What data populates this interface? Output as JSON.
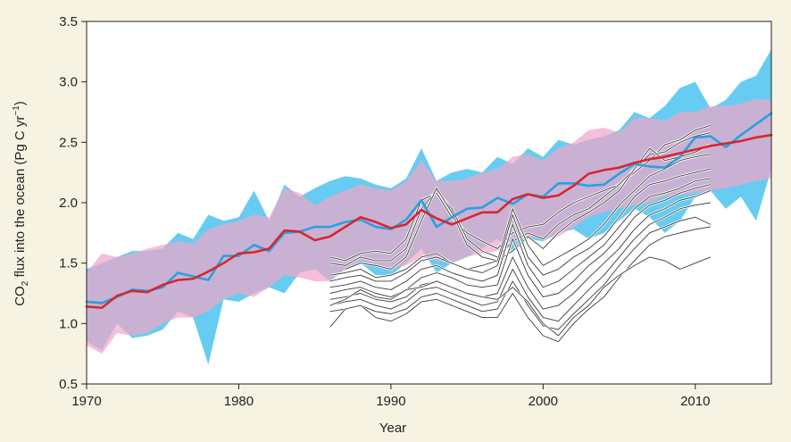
{
  "chart_data": {
    "type": "line",
    "title": "",
    "xlabel": "Year",
    "ylabel": {
      "prefix": "CO",
      "sub": "2",
      "middle": " flux into the ocean (Pg C yr",
      "sup": "−1",
      "suffix": ")"
    },
    "xlim": [
      1970,
      2015
    ],
    "ylim": [
      0.5,
      3.5
    ],
    "xticks": [
      1970,
      1980,
      1990,
      2000,
      2010
    ],
    "yticks": [
      "0.5",
      "1.0",
      "1.5",
      "2.0",
      "2.5",
      "3.0",
      "3.5"
    ],
    "grid": false,
    "legend": "none",
    "colors": {
      "blue_line": "#2b9fe0",
      "blue_band": "#4cc3ef",
      "red_line": "#d7262e",
      "pink_band": "#f0a6c8",
      "overlap": "#c49ad6",
      "gray_lines": "#3a3a3a",
      "background": "#f7f3e3"
    },
    "series": [
      {
        "color": "#2b9fe0",
        "band_color": "#4cc3ef",
        "x": [
          1970,
          1971,
          1972,
          1973,
          1974,
          1975,
          1976,
          1977,
          1978,
          1979,
          1980,
          1981,
          1982,
          1983,
          1984,
          1985,
          1986,
          1987,
          1988,
          1989,
          1990,
          1991,
          1992,
          1993,
          1994,
          1995,
          1996,
          1997,
          1998,
          1999,
          2000,
          2001,
          2002,
          2003,
          2004,
          2005,
          2006,
          2007,
          2008,
          2009,
          2010,
          2011,
          2012,
          2013,
          2014,
          2015
        ],
        "values": [
          1.18,
          1.17,
          1.22,
          1.28,
          1.27,
          1.3,
          1.42,
          1.39,
          1.36,
          1.56,
          1.56,
          1.65,
          1.6,
          1.75,
          1.76,
          1.8,
          1.8,
          1.84,
          1.86,
          1.8,
          1.78,
          1.86,
          2.02,
          1.8,
          1.88,
          1.95,
          1.96,
          2.04,
          1.99,
          2.07,
          2.05,
          2.16,
          2.16,
          2.14,
          2.15,
          2.24,
          2.32,
          2.3,
          2.29,
          2.38,
          2.54,
          2.55,
          2.46,
          2.56,
          2.65,
          2.74
        ],
        "band_upper": [
          1.45,
          1.5,
          1.55,
          1.6,
          1.6,
          1.62,
          1.75,
          1.7,
          1.9,
          1.85,
          1.88,
          2.1,
          1.85,
          2.15,
          2.05,
          2.12,
          2.18,
          2.22,
          2.2,
          2.15,
          2.12,
          2.2,
          2.45,
          2.18,
          2.25,
          2.28,
          2.25,
          2.38,
          2.32,
          2.45,
          2.38,
          2.52,
          2.48,
          2.52,
          2.55,
          2.6,
          2.75,
          2.7,
          2.8,
          2.95,
          3.0,
          2.78,
          2.85,
          3.0,
          3.05,
          3.27
        ],
        "band_lower": [
          0.85,
          0.78,
          1.0,
          0.88,
          0.9,
          0.95,
          1.1,
          1.05,
          0.66,
          1.2,
          1.18,
          1.25,
          1.3,
          1.25,
          1.42,
          1.45,
          1.35,
          1.45,
          1.5,
          1.4,
          1.4,
          1.5,
          1.62,
          1.42,
          1.5,
          1.55,
          1.62,
          1.7,
          1.6,
          1.7,
          1.68,
          1.75,
          1.78,
          1.7,
          1.75,
          1.85,
          1.95,
          1.88,
          1.75,
          1.85,
          2.05,
          2.1,
          1.95,
          2.05,
          1.85,
          2.28
        ]
      },
      {
        "color": "#d7262e",
        "band_color": "#f0a6c8",
        "x": [
          1970,
          1971,
          1972,
          1973,
          1974,
          1975,
          1976,
          1977,
          1978,
          1979,
          1980,
          1981,
          1982,
          1983,
          1984,
          1985,
          1986,
          1987,
          1988,
          1989,
          1990,
          1991,
          1992,
          1993,
          1994,
          1995,
          1996,
          1997,
          1998,
          1999,
          2000,
          2001,
          2002,
          2003,
          2004,
          2005,
          2006,
          2007,
          2008,
          2009,
          2010,
          2011,
          2012,
          2013,
          2014,
          2015
        ],
        "values": [
          1.14,
          1.13,
          1.23,
          1.27,
          1.26,
          1.32,
          1.36,
          1.37,
          1.43,
          1.5,
          1.58,
          1.59,
          1.62,
          1.77,
          1.76,
          1.69,
          1.72,
          1.8,
          1.88,
          1.84,
          1.79,
          1.82,
          1.94,
          1.87,
          1.82,
          1.87,
          1.92,
          1.92,
          2.03,
          2.07,
          2.04,
          2.06,
          2.14,
          2.24,
          2.27,
          2.29,
          2.33,
          2.36,
          2.38,
          2.41,
          2.44,
          2.47,
          2.49,
          2.51,
          2.54,
          2.56
        ],
        "band_upper": [
          1.42,
          1.58,
          1.55,
          1.58,
          1.62,
          1.65,
          1.68,
          1.66,
          1.78,
          1.82,
          1.85,
          1.9,
          1.88,
          2.12,
          2.08,
          1.98,
          2.05,
          2.1,
          2.15,
          2.12,
          2.1,
          2.18,
          2.35,
          2.18,
          2.18,
          2.2,
          2.25,
          2.28,
          2.38,
          2.4,
          2.35,
          2.45,
          2.5,
          2.6,
          2.62,
          2.58,
          2.7,
          2.7,
          2.68,
          2.75,
          2.75,
          2.8,
          2.8,
          2.82,
          2.86,
          2.85
        ],
        "band_lower": [
          0.82,
          0.75,
          0.92,
          0.9,
          0.92,
          1.0,
          1.05,
          1.05,
          1.1,
          1.2,
          1.25,
          1.22,
          1.3,
          1.4,
          1.38,
          1.35,
          1.35,
          1.45,
          1.52,
          1.48,
          1.45,
          1.48,
          1.55,
          1.52,
          1.5,
          1.55,
          1.58,
          1.6,
          1.68,
          1.72,
          1.7,
          1.72,
          1.8,
          1.88,
          1.92,
          1.95,
          1.98,
          2.0,
          2.05,
          2.06,
          2.08,
          2.1,
          2.12,
          2.15,
          2.18,
          2.2
        ]
      }
    ],
    "gray_lines": [
      {
        "x": [
          1986,
          1987,
          1988,
          1989,
          1990,
          1991,
          1992,
          1993,
          1994,
          1995,
          1996,
          1997,
          1998,
          1999,
          2000,
          2001,
          2002,
          2003,
          2004,
          2005,
          2006,
          2007,
          2008,
          2009,
          2010,
          2011
        ],
        "values": [
          1.55,
          1.52,
          1.58,
          1.6,
          1.58,
          1.7,
          2.02,
          2.08,
          1.88,
          1.75,
          1.68,
          1.62,
          1.75,
          1.8,
          1.82,
          1.92,
          2.0,
          2.05,
          2.1,
          2.15,
          2.25,
          2.35,
          2.48,
          2.52,
          2.6,
          2.64
        ]
      },
      {
        "x": [
          1986,
          1987,
          1988,
          1989,
          1990,
          1991,
          1992,
          1993,
          1994,
          1995,
          1996,
          1997,
          1998,
          1999,
          2000,
          2001,
          2002,
          2003,
          2004,
          2005,
          2006,
          2007,
          2008,
          2009,
          2010,
          2011
        ],
        "values": [
          1.5,
          1.48,
          1.55,
          1.52,
          1.52,
          1.62,
          1.95,
          2.1,
          1.95,
          1.7,
          1.6,
          1.55,
          1.68,
          1.75,
          1.7,
          1.82,
          1.9,
          1.95,
          2.05,
          2.15,
          2.28,
          2.4,
          2.42,
          2.5,
          2.55,
          2.58
        ]
      },
      {
        "x": [
          1987,
          1988,
          1989,
          1990,
          1991,
          1992,
          1993,
          1994,
          1995,
          1996,
          1997,
          1998,
          1999,
          2000,
          2001,
          2002,
          2003,
          2004,
          2005,
          2006,
          2007,
          2008,
          2009,
          2010,
          2011
        ],
        "values": [
          1.45,
          1.5,
          1.48,
          1.45,
          1.55,
          1.85,
          2.12,
          1.92,
          1.65,
          1.55,
          1.52,
          1.6,
          1.72,
          1.62,
          1.75,
          1.85,
          1.92,
          2.0,
          2.1,
          2.28,
          2.45,
          2.35,
          2.38,
          2.42,
          2.48
        ]
      },
      {
        "x": [
          1986,
          1987,
          1988,
          1989,
          1990,
          1991,
          1992,
          1993,
          1994,
          1995,
          1996,
          1997,
          1998,
          1999,
          2000,
          2001,
          2002,
          2003,
          2004,
          2005,
          2006,
          2007,
          2008,
          2009,
          2010,
          2011
        ],
        "values": [
          1.4,
          1.42,
          1.45,
          1.38,
          1.4,
          1.45,
          1.55,
          1.58,
          1.5,
          1.45,
          1.48,
          1.52,
          1.95,
          1.65,
          1.48,
          1.55,
          1.62,
          1.7,
          1.82,
          1.98,
          2.1,
          2.22,
          2.28,
          2.35,
          2.38,
          2.4
        ]
      },
      {
        "x": [
          1986,
          1987,
          1988,
          1989,
          1990,
          1991,
          1992,
          1993,
          1994,
          1995,
          1996,
          1997,
          1998,
          1999,
          2000,
          2001,
          2002,
          2003,
          2004,
          2005,
          2006,
          2007,
          2008,
          2009,
          2010,
          2011
        ],
        "values": [
          1.35,
          1.38,
          1.4,
          1.35,
          1.35,
          1.42,
          1.52,
          1.55,
          1.5,
          1.45,
          1.42,
          1.48,
          1.9,
          1.55,
          1.4,
          1.45,
          1.55,
          1.62,
          1.72,
          1.88,
          2.05,
          2.15,
          2.18,
          2.22,
          2.25,
          2.28
        ]
      },
      {
        "x": [
          1986,
          1987,
          1988,
          1989,
          1990,
          1991,
          1992,
          1993,
          1994,
          1995,
          1996,
          1997,
          1998,
          1999,
          2000,
          2001,
          2002,
          2003,
          2004,
          2005,
          2006,
          2007,
          2008,
          2009,
          2010,
          2011
        ],
        "values": [
          1.3,
          1.32,
          1.35,
          1.3,
          1.28,
          1.35,
          1.45,
          1.48,
          1.42,
          1.38,
          1.35,
          1.4,
          1.82,
          1.48,
          1.3,
          1.35,
          1.45,
          1.55,
          1.65,
          1.8,
          1.95,
          2.05,
          2.08,
          2.12,
          2.18,
          2.2
        ]
      },
      {
        "x": [
          1986,
          1987,
          1988,
          1989,
          1990,
          1991,
          1992,
          1993,
          1994,
          1995,
          1996,
          1997,
          1998,
          1999,
          2000,
          2001,
          2002,
          2003,
          2004,
          2005,
          2006,
          2007,
          2008,
          2009,
          2010,
          2011
        ],
        "values": [
          1.25,
          1.28,
          1.3,
          1.25,
          1.22,
          1.28,
          1.38,
          1.42,
          1.38,
          1.32,
          1.3,
          1.32,
          1.7,
          1.4,
          1.22,
          1.25,
          1.35,
          1.48,
          1.58,
          1.72,
          1.88,
          1.98,
          2.02,
          2.08,
          2.12,
          2.15
        ]
      },
      {
        "x": [
          1986,
          1987,
          1988,
          1989,
          1990,
          1991,
          1992,
          1993,
          1994,
          1995,
          1996,
          1997,
          1998,
          1999,
          2000,
          2001,
          2002,
          2003,
          2004,
          2005,
          2006,
          2007,
          2008,
          2009,
          2010,
          2011
        ],
        "values": [
          1.2,
          1.22,
          1.25,
          1.2,
          1.18,
          1.22,
          1.32,
          1.35,
          1.3,
          1.25,
          1.22,
          1.25,
          1.55,
          1.3,
          1.12,
          1.15,
          1.25,
          1.38,
          1.5,
          1.62,
          1.78,
          1.9,
          1.95,
          2.02,
          2.05,
          2.1
        ]
      },
      {
        "x": [
          1986,
          1987,
          1988,
          1989,
          1990,
          1991,
          1992,
          1993,
          1994,
          1995,
          1996,
          1997,
          1998,
          1999,
          2000,
          2001,
          2002,
          2003,
          2004,
          2005,
          2006,
          2007,
          2008,
          2009,
          2010,
          2011
        ],
        "values": [
          1.15,
          1.18,
          1.2,
          1.15,
          1.12,
          1.18,
          1.28,
          1.3,
          1.25,
          1.2,
          1.15,
          1.18,
          1.45,
          1.22,
          1.05,
          1.02,
          1.15,
          1.28,
          1.4,
          1.55,
          1.7,
          1.82,
          1.88,
          1.95,
          1.98,
          2.0
        ]
      },
      {
        "x": [
          1986,
          1987,
          1988,
          1989,
          1990,
          1991,
          1992,
          1993,
          1994,
          1995,
          1996,
          1997,
          1998,
          1999,
          2000,
          2001,
          2002,
          2003,
          2004,
          2005,
          2006,
          2007,
          2008,
          2009,
          2010,
          2011
        ],
        "values": [
          1.1,
          1.12,
          1.15,
          1.1,
          1.08,
          1.12,
          1.22,
          1.25,
          1.2,
          1.15,
          1.1,
          1.12,
          1.35,
          1.15,
          0.98,
          0.95,
          1.08,
          1.2,
          1.32,
          1.48,
          1.62,
          1.75,
          1.8,
          1.85,
          1.88,
          1.82
        ]
      },
      {
        "x": [
          1986,
          1987,
          1988,
          1989,
          1990,
          1991,
          1992,
          1993,
          1994,
          1995,
          1996,
          1997,
          1998,
          1999,
          2000,
          2001,
          2002,
          2003,
          2004,
          2005,
          2006,
          2007,
          2008,
          2009,
          2010,
          2011
        ],
        "values": [
          0.97,
          1.12,
          1.15,
          1.05,
          1.02,
          1.08,
          1.18,
          1.2,
          1.15,
          1.1,
          1.05,
          1.05,
          1.25,
          1.05,
          0.9,
          0.85,
          1.0,
          1.12,
          1.22,
          1.38,
          1.52,
          1.65,
          1.72,
          1.75,
          1.78,
          1.8
        ]
      },
      {
        "x": [
          1986,
          1987,
          1988,
          1989,
          1990,
          1991,
          1992,
          1993,
          1994,
          1995,
          1996,
          1997,
          1998,
          1999,
          2000,
          2001,
          2002,
          2003,
          2004,
          2005,
          2006,
          2007,
          2008,
          2009,
          2010,
          2011
        ],
        "values": [
          1.15,
          1.2,
          1.28,
          1.22,
          1.2,
          1.28,
          1.3,
          1.35,
          1.3,
          1.25,
          1.22,
          1.2,
          1.3,
          1.18,
          1.0,
          0.9,
          1.05,
          1.15,
          1.3,
          1.4,
          1.48,
          1.55,
          1.52,
          1.45,
          1.5,
          1.55
        ]
      }
    ]
  }
}
